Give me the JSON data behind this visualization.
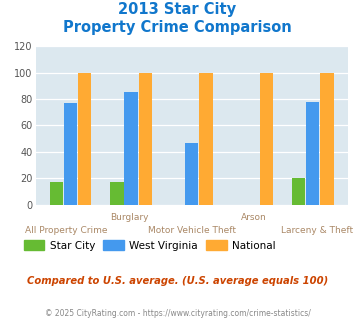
{
  "title_line1": "2013 Star City",
  "title_line2": "Property Crime Comparison",
  "star_city": [
    17,
    17,
    0,
    0,
    20
  ],
  "west_virginia": [
    77,
    85,
    47,
    0,
    78
  ],
  "national": [
    100,
    100,
    100,
    100,
    100
  ],
  "bar_colors": {
    "star_city": "#66bb33",
    "west_virginia": "#4499ee",
    "national": "#ffaa33"
  },
  "ylim": [
    0,
    120
  ],
  "yticks": [
    0,
    20,
    40,
    60,
    80,
    100,
    120
  ],
  "plot_bg": "#dce8ef",
  "title_color": "#1177cc",
  "xlabel_color": "#aa8866",
  "footnote1": "Compared to U.S. average. (U.S. average equals 100)",
  "footnote2": "© 2025 CityRating.com - https://www.cityrating.com/crime-statistics/",
  "footnote1_color": "#cc4400",
  "footnote2_color": "#888888",
  "legend_labels": [
    "Star City",
    "West Virginia",
    "National"
  ],
  "group_labels_top": [
    "",
    "Burglary",
    "",
    "Arson",
    ""
  ],
  "group_labels_bottom": [
    "All Property Crime",
    "",
    "Motor Vehicle Theft",
    "",
    "Larceny & Theft"
  ]
}
